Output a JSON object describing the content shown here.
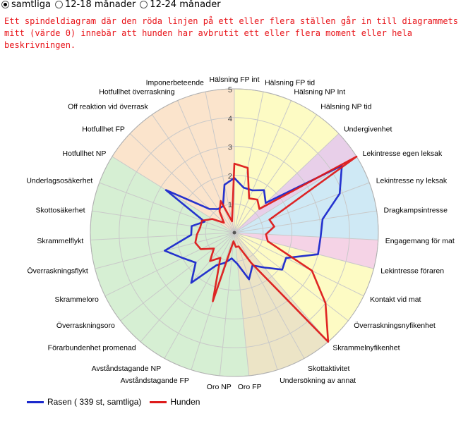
{
  "filter": {
    "options": [
      {
        "label": "samtliga",
        "checked": true
      },
      {
        "label": "12-18 månader",
        "checked": false
      },
      {
        "label": "12-24 månader",
        "checked": false
      }
    ]
  },
  "notice": "Ett spindeldiagram där den röda linjen på ett eller flera ställen går in till diagrammets mitt (värde 0) innebär att hunden har avbrutit ett eller flera moment eller hela beskrivningen.",
  "chart_data": {
    "type": "radar",
    "title": "",
    "rmax": 5,
    "ticks": [
      1,
      2,
      3,
      4,
      5
    ],
    "tick_labels": [
      "1",
      "2",
      "3",
      "4",
      "5"
    ],
    "categories": [
      "Hälsning FP int",
      "Hälsning FP tid",
      "Hälsning NP Int",
      "Hälsning NP tid",
      "Undergivenhet",
      "Lekintresse egen leksak",
      "Lekintresse ny leksak",
      "Dragkampsintresse",
      "Engagemang för mat",
      "Lekintresse föraren",
      "Kontakt vid mat",
      "Överraskningsnyfikenhet",
      "Skrammelnyfikenhet",
      "Skottaktivitet",
      "Undersökning av annat",
      "Oro FP",
      "Oro NP",
      "Avståndstagande FP",
      "Avståndstagande NP",
      "Förarbundenhet promenad",
      "Överraskningsoro",
      "Skrammeloro",
      "Överraskningsflykt",
      "Skrammelflykt",
      "Skottosäkerhet",
      "Underlagsosäkerhet",
      "Hotfullhet NP",
      "Hotfullhet FP",
      "Off reaktion vid överrask",
      "Hotfullhet överraskning",
      "Imponerbeteende"
    ],
    "sectors": [
      {
        "from": 0,
        "to": 4,
        "color": "#fdfbc4"
      },
      {
        "from": 4,
        "to": 5,
        "color": "#e8cfe9"
      },
      {
        "from": 5,
        "to": 8,
        "color": "#cfe9f5"
      },
      {
        "from": 8,
        "to": 9,
        "color": "#f5d3e6"
      },
      {
        "from": 9,
        "to": 12,
        "color": "#fdfbc4"
      },
      {
        "from": 12,
        "to": 15,
        "color": "#ece4c6"
      },
      {
        "from": 15,
        "to": 26,
        "color": "#d6efd3"
      },
      {
        "from": 26,
        "to": 31,
        "color": "#fbe4cc"
      }
    ],
    "series": [
      {
        "name": "Rasen ( 339 st, samtliga)",
        "color": "#1a28cc",
        "values": [
          1.9,
          1.6,
          1.6,
          1.8,
          1.5,
          4.4,
          3.9,
          3.1,
          3.0,
          3.0,
          2.0,
          2.1,
          1.6,
          1.3,
          1.7,
          1.1,
          0.9,
          1.1,
          1.3,
          2.3,
          1.7,
          2.0,
          2.5,
          1.5,
          1.5,
          1.1,
          2.8,
          1.2,
          1.0,
          1.0,
          1.7
        ]
      },
      {
        "name": "Hunden",
        "color": "#dd1a1a",
        "values": [
          2.4,
          2.3,
          1.3,
          1.4,
          1.2,
          5.0,
          1.3,
          1.4,
          1.1,
          1.2,
          3.0,
          4.0,
          5.0,
          1.2,
          0.5,
          0.5,
          0.3,
          2.5,
          1.0,
          1.3,
          0.9,
          1.3,
          1.4,
          1.3,
          1.2,
          1.2,
          0.9,
          0.5,
          0.9,
          1.2,
          0.4
        ]
      }
    ]
  }
}
